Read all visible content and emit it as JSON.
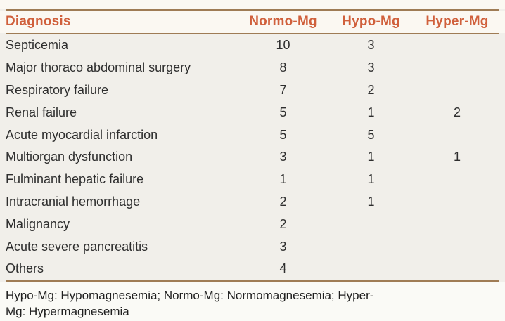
{
  "table": {
    "header": {
      "diagnosis": "Diagnosis",
      "normo": "Normo-Mg",
      "hypo": "Hypo-Mg",
      "hyper": "Hyper-Mg"
    },
    "rows": [
      {
        "diagnosis": "Septicemia",
        "normo": "10",
        "hypo": "3",
        "hyper": ""
      },
      {
        "diagnosis": "Major thoraco abdominal surgery",
        "normo": "8",
        "hypo": "3",
        "hyper": ""
      },
      {
        "diagnosis": "Respiratory failure",
        "normo": "7",
        "hypo": "2",
        "hyper": ""
      },
      {
        "diagnosis": "Renal failure",
        "normo": "5",
        "hypo": "1",
        "hyper": "2"
      },
      {
        "diagnosis": "Acute myocardial infarction",
        "normo": "5",
        "hypo": "5",
        "hyper": ""
      },
      {
        "diagnosis": "Multiorgan dysfunction",
        "normo": "3",
        "hypo": "1",
        "hyper": "1"
      },
      {
        "diagnosis": "Fulminant hepatic failure",
        "normo": "1",
        "hypo": "1",
        "hyper": ""
      },
      {
        "diagnosis": "Intracranial hemorrhage",
        "normo": "2",
        "hypo": "1",
        "hyper": ""
      },
      {
        "diagnosis": "Malignancy",
        "normo": "2",
        "hypo": "",
        "hyper": ""
      },
      {
        "diagnosis": "Acute severe pancreatitis",
        "normo": "3",
        "hypo": "",
        "hyper": ""
      },
      {
        "diagnosis": "Others",
        "normo": "4",
        "hypo": "",
        "hyper": ""
      }
    ],
    "footnote_line1": "Hypo-Mg: Hypomagnesemia; Normo-Mg: Normomagnesemia; Hyper-",
    "footnote_line2": "Mg: Hypermagnesemia"
  },
  "colors": {
    "header_text": "#d0603c",
    "rule": "#9f7c55",
    "body_text": "#2e2e2e",
    "background": "#f1efea"
  }
}
